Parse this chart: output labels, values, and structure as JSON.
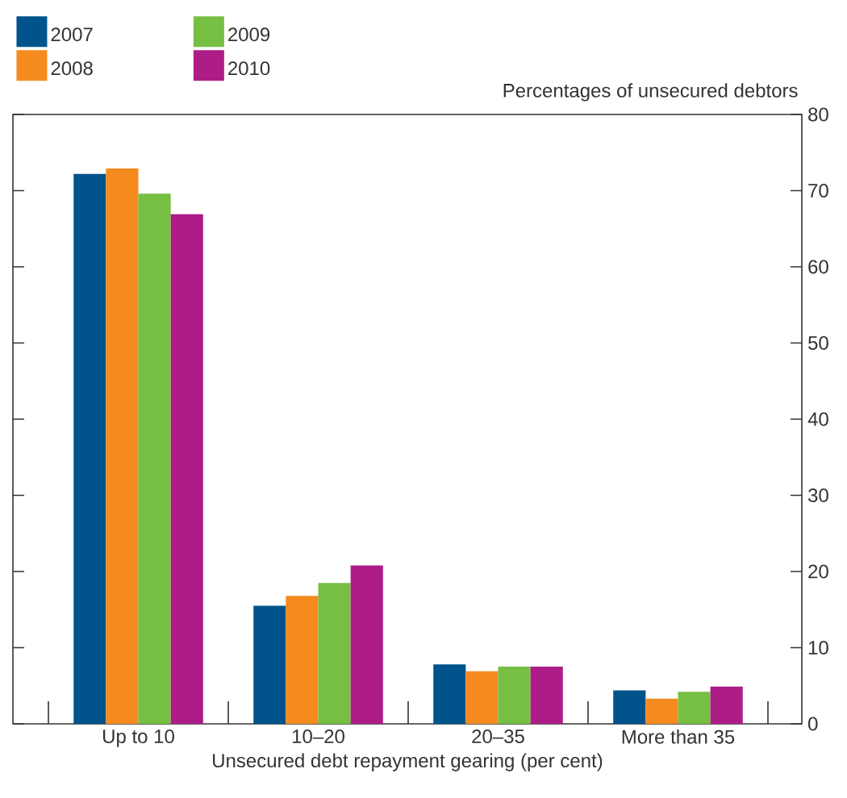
{
  "chart_data": {
    "type": "bar",
    "xlabel": "Unsecured debt repayment gearing (per cent)",
    "ylabel": "Percentages of unsecured debtors",
    "categories": [
      "Up to 10",
      "10–20",
      "20–35",
      "More than 35"
    ],
    "series": [
      {
        "name": "2007",
        "color": "#00548b",
        "values": [
          72.2,
          15.5,
          7.8,
          4.4
        ]
      },
      {
        "name": "2008",
        "color": "#f58a1f",
        "values": [
          72.9,
          16.8,
          6.9,
          3.3
        ]
      },
      {
        "name": "2009",
        "color": "#77bf43",
        "values": [
          69.6,
          18.5,
          7.5,
          4.2
        ]
      },
      {
        "name": "2010",
        "color": "#ae1c87",
        "values": [
          66.9,
          20.8,
          7.5,
          4.9
        ]
      }
    ],
    "ylim": [
      0,
      80
    ],
    "yticks": [
      0,
      10,
      20,
      30,
      40,
      50,
      60,
      70,
      80
    ],
    "legend": "top left",
    "grid": false
  }
}
